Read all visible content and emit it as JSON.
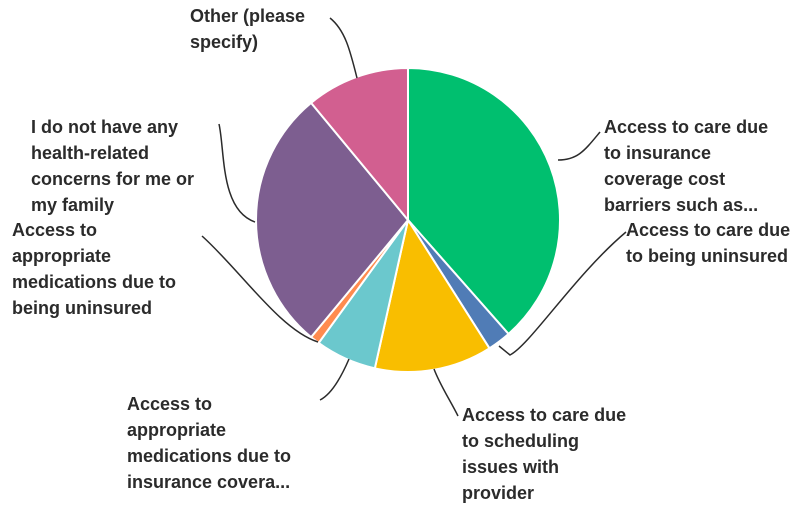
{
  "chart_data": {
    "type": "pie",
    "title": "",
    "series": [
      {
        "name": "",
        "slices": [
          {
            "label": [
              "Access to care due",
              "to insurance",
              "coverage cost",
              "barriers such as..."
            ],
            "value": 38.5,
            "color": "#00bf6f"
          },
          {
            "label": [
              "Access to care due",
              "to being uninsured"
            ],
            "value": 2.5,
            "color": "#507cb6"
          },
          {
            "label": [
              "Access to care due",
              "to scheduling",
              "issues with",
              "provider"
            ],
            "value": 12.5,
            "color": "#f9be00"
          },
          {
            "label": [
              "Access to",
              "appropriate",
              "medications due to",
              "insurance covera..."
            ],
            "value": 6.5,
            "color": "#6bc8cd"
          },
          {
            "label": [
              "Access to",
              "appropriate",
              "medications due to",
              "being uninsured"
            ],
            "value": 1.0,
            "color": "#ff8b4f"
          },
          {
            "label": [
              "I do not have any",
              "health-related",
              "concerns for me or",
              "my family"
            ],
            "value": 28.0,
            "color": "#7d5e90"
          },
          {
            "label": [
              "Other (please",
              "specify)"
            ],
            "value": 11.0,
            "color": "#d25f90"
          }
        ]
      }
    ],
    "legend": "none"
  }
}
